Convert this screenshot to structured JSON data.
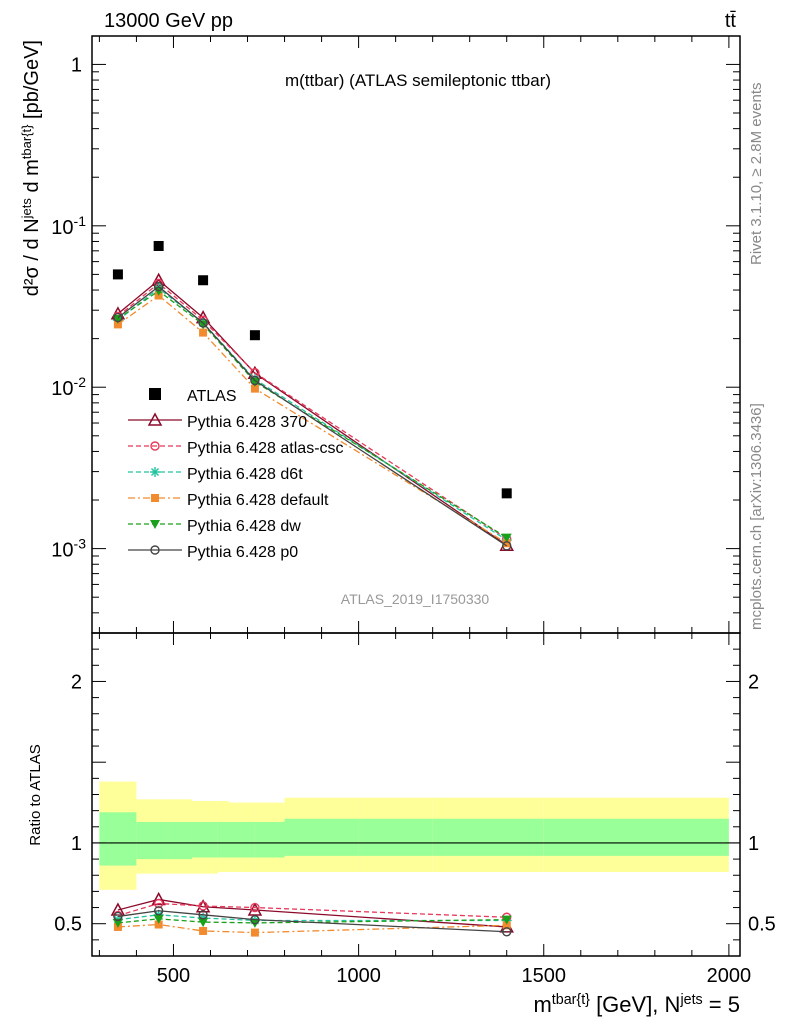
{
  "header": {
    "left": "13000 GeV pp",
    "right": "tt̄"
  },
  "side": {
    "rivet": "Rivet 3.1.10, ≥ 2.8M events",
    "mcplots": "mcplots.cern.ch [arXiv:1306.3436]"
  },
  "chart_data": [
    {
      "type": "scatter",
      "panel": "main",
      "title": "m(ttbar) (ATLAS semileptonic ttbar)",
      "watermark": "ATLAS_2019_I1750330",
      "ylabel": "d²σ / d N^jets d m^tbar{t} [pb/GeV]",
      "yscale": "log",
      "xlim": [
        280,
        2030
      ],
      "ylim": [
        0.0003,
        1.5
      ],
      "yticks": [
        {
          "v": 1,
          "label": "1"
        },
        {
          "v": 0.1,
          "label": "10^-1"
        },
        {
          "v": 0.01,
          "label": "10^-2"
        },
        {
          "v": 0.001,
          "label": "10^-3"
        }
      ],
      "legend_position": "lower-left",
      "data_series": {
        "name": "ATLAS",
        "color": "#000000",
        "marker": "square",
        "x": [
          350,
          460,
          580,
          720,
          1400
        ],
        "y": [
          0.05,
          0.075,
          0.046,
          0.021,
          0.0022
        ]
      },
      "series": [
        {
          "name": "Pythia 6.428 370",
          "color": "#8b0a2a",
          "dash": "",
          "marker": "triangle",
          "x": [
            350,
            460,
            580,
            720,
            1400
          ],
          "y": [
            0.0285,
            0.046,
            0.027,
            0.0122,
            0.00105
          ]
        },
        {
          "name": "Pythia 6.428 atlas-csc",
          "color": "#e8375a",
          "dash": "5,3",
          "marker": "circle",
          "x": [
            350,
            460,
            580,
            720,
            1400
          ],
          "y": [
            0.0275,
            0.044,
            0.026,
            0.0123,
            0.00115
          ]
        },
        {
          "name": "Pythia 6.428 d6t",
          "color": "#22c4a0",
          "dash": "5,3",
          "marker": "star",
          "x": [
            350,
            460,
            580,
            720,
            1400
          ],
          "y": [
            0.026,
            0.041,
            0.025,
            0.0112,
            0.00113
          ]
        },
        {
          "name": "Pythia 6.428 default",
          "color": "#f28a2e",
          "dash": "7,3,2,3",
          "marker": "filled-square",
          "x": [
            350,
            460,
            580,
            720,
            1400
          ],
          "y": [
            0.0245,
            0.037,
            0.0218,
            0.0098,
            0.00108
          ]
        },
        {
          "name": "Pythia 6.428 dw",
          "color": "#1aa01a",
          "dash": "5,3",
          "marker": "filled-triangle-down",
          "x": [
            350,
            460,
            580,
            720,
            1400
          ],
          "y": [
            0.0265,
            0.0395,
            0.0245,
            0.0108,
            0.00117
          ]
        },
        {
          "name": "Pythia 6.428 p0",
          "color": "#444444",
          "dash": "",
          "marker": "open-circle",
          "x": [
            350,
            460,
            580,
            720,
            1400
          ],
          "y": [
            0.027,
            0.042,
            0.025,
            0.011,
            0.00104
          ]
        }
      ]
    },
    {
      "type": "line",
      "panel": "ratio",
      "ylabel": "Ratio to ATLAS",
      "xlabel": "m^tbar{t} [GeV], N^jets = 5",
      "xlim": [
        280,
        2030
      ],
      "ylim": [
        0.3,
        2.3
      ],
      "xticks": [
        500,
        1000,
        1500,
        2000
      ],
      "yticks": [
        0.5,
        1,
        2
      ],
      "bands": {
        "edges": [
          300,
          400,
          480,
          550,
          620,
          650,
          720,
          800,
          1000,
          1200,
          1500,
          2000
        ],
        "yellow_lo": [
          0.71,
          0.81,
          0.81,
          0.81,
          0.82,
          0.82,
          0.82,
          0.82,
          0.82,
          0.82,
          0.82
        ],
        "yellow_hi": [
          1.38,
          1.27,
          1.27,
          1.26,
          1.26,
          1.25,
          1.25,
          1.28,
          1.28,
          1.28,
          1.28
        ],
        "green_lo": [
          0.86,
          0.9,
          0.9,
          0.91,
          0.91,
          0.91,
          0.91,
          0.92,
          0.92,
          0.92,
          0.92
        ],
        "green_hi": [
          1.19,
          1.13,
          1.13,
          1.13,
          1.13,
          1.13,
          1.13,
          1.15,
          1.15,
          1.15,
          1.15
        ]
      },
      "series": [
        {
          "name": "Pythia 6.428 370",
          "x": [
            350,
            460,
            580,
            720,
            1400
          ],
          "y": [
            0.585,
            0.65,
            0.605,
            0.585,
            0.48
          ]
        },
        {
          "name": "Pythia 6.428 atlas-csc",
          "x": [
            350,
            460,
            580,
            720,
            1400
          ],
          "y": [
            0.55,
            0.625,
            0.61,
            0.6,
            0.54
          ]
        },
        {
          "name": "Pythia 6.428 d6t",
          "x": [
            350,
            460,
            580,
            720,
            1400
          ],
          "y": [
            0.525,
            0.555,
            0.535,
            0.52,
            0.52
          ]
        },
        {
          "name": "Pythia 6.428 default",
          "x": [
            350,
            460,
            580,
            720,
            1400
          ],
          "y": [
            0.48,
            0.495,
            0.455,
            0.445,
            0.49
          ]
        },
        {
          "name": "Pythia 6.428 dw",
          "x": [
            350,
            460,
            580,
            720,
            1400
          ],
          "y": [
            0.505,
            0.53,
            0.51,
            0.505,
            0.525
          ]
        },
        {
          "name": "Pythia 6.428 p0",
          "x": [
            350,
            460,
            580,
            720,
            1400
          ],
          "y": [
            0.545,
            0.58,
            0.555,
            0.525,
            0.45
          ]
        }
      ]
    }
  ]
}
